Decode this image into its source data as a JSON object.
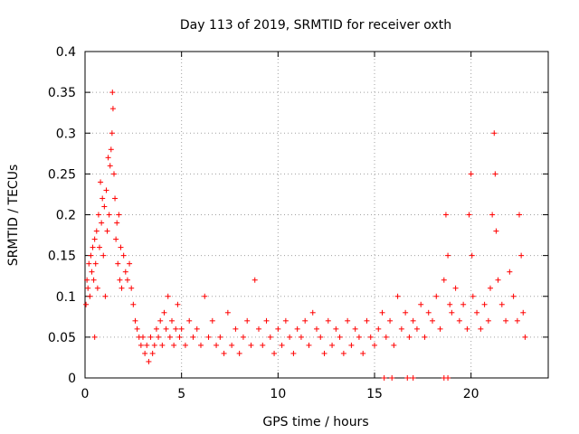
{
  "chart_data": {
    "type": "scatter",
    "title": "Day 113 of 2019, SRMTID for receiver oxth",
    "xlabel": "GPS time / hours",
    "ylabel": "SRMTID / TECUs",
    "xlim": [
      0,
      24
    ],
    "ylim": [
      0,
      0.4
    ],
    "xticks": [
      0,
      5,
      10,
      15,
      20
    ],
    "xtick_labels": [
      "0",
      "5",
      "10",
      "15",
      "20"
    ],
    "yticks": [
      0,
      0.05,
      0.1,
      0.15,
      0.2,
      0.25,
      0.3,
      0.35,
      0.4
    ],
    "ytick_labels": [
      "0",
      "0.05",
      "0.1",
      "0.15",
      "0.2",
      "0.25",
      "0.3",
      "0.35",
      "0.4"
    ],
    "grid": true,
    "marker": "+",
    "color": "#ff0000",
    "series": [
      {
        "name": "SRMTID",
        "points": [
          [
            0.05,
            0.09
          ],
          [
            0.1,
            0.12
          ],
          [
            0.15,
            0.11
          ],
          [
            0.2,
            0.14
          ],
          [
            0.25,
            0.1
          ],
          [
            0.3,
            0.15
          ],
          [
            0.35,
            0.13
          ],
          [
            0.4,
            0.16
          ],
          [
            0.45,
            0.12
          ],
          [
            0.5,
            0.05
          ],
          [
            0.5,
            0.17
          ],
          [
            0.55,
            0.14
          ],
          [
            0.6,
            0.18
          ],
          [
            0.65,
            0.11
          ],
          [
            0.7,
            0.2
          ],
          [
            0.75,
            0.16
          ],
          [
            0.8,
            0.24
          ],
          [
            0.85,
            0.19
          ],
          [
            0.9,
            0.22
          ],
          [
            0.95,
            0.15
          ],
          [
            1.0,
            0.21
          ],
          [
            1.05,
            0.1
          ],
          [
            1.1,
            0.23
          ],
          [
            1.15,
            0.18
          ],
          [
            1.2,
            0.27
          ],
          [
            1.25,
            0.2
          ],
          [
            1.3,
            0.26
          ],
          [
            1.35,
            0.28
          ],
          [
            1.4,
            0.3
          ],
          [
            1.42,
            0.35
          ],
          [
            1.45,
            0.33
          ],
          [
            1.5,
            0.25
          ],
          [
            1.55,
            0.22
          ],
          [
            1.6,
            0.17
          ],
          [
            1.65,
            0.19
          ],
          [
            1.7,
            0.14
          ],
          [
            1.75,
            0.2
          ],
          [
            1.8,
            0.12
          ],
          [
            1.85,
            0.16
          ],
          [
            1.9,
            0.11
          ],
          [
            2.0,
            0.15
          ],
          [
            2.1,
            0.13
          ],
          [
            2.2,
            0.12
          ],
          [
            2.3,
            0.14
          ],
          [
            2.4,
            0.11
          ],
          [
            2.5,
            0.09
          ],
          [
            2.6,
            0.07
          ],
          [
            2.7,
            0.06
          ],
          [
            2.8,
            0.05
          ],
          [
            2.9,
            0.04
          ],
          [
            3.0,
            0.05
          ],
          [
            3.1,
            0.03
          ],
          [
            3.2,
            0.04
          ],
          [
            3.3,
            0.02
          ],
          [
            3.4,
            0.05
          ],
          [
            3.5,
            0.03
          ],
          [
            3.6,
            0.04
          ],
          [
            3.7,
            0.06
          ],
          [
            3.8,
            0.05
          ],
          [
            3.9,
            0.07
          ],
          [
            4.0,
            0.04
          ],
          [
            4.1,
            0.08
          ],
          [
            4.2,
            0.06
          ],
          [
            4.3,
            0.1
          ],
          [
            4.4,
            0.05
          ],
          [
            4.5,
            0.07
          ],
          [
            4.6,
            0.04
          ],
          [
            4.7,
            0.06
          ],
          [
            4.8,
            0.09
          ],
          [
            4.9,
            0.05
          ],
          [
            5.0,
            0.06
          ],
          [
            5.2,
            0.04
          ],
          [
            5.4,
            0.07
          ],
          [
            5.6,
            0.05
          ],
          [
            5.8,
            0.06
          ],
          [
            6.0,
            0.04
          ],
          [
            6.2,
            0.1
          ],
          [
            6.4,
            0.05
          ],
          [
            6.6,
            0.07
          ],
          [
            6.8,
            0.04
          ],
          [
            7.0,
            0.05
          ],
          [
            7.2,
            0.03
          ],
          [
            7.4,
            0.08
          ],
          [
            7.6,
            0.04
          ],
          [
            7.8,
            0.06
          ],
          [
            8.0,
            0.03
          ],
          [
            8.2,
            0.05
          ],
          [
            8.4,
            0.07
          ],
          [
            8.6,
            0.04
          ],
          [
            8.8,
            0.12
          ],
          [
            9.0,
            0.06
          ],
          [
            9.2,
            0.04
          ],
          [
            9.4,
            0.07
          ],
          [
            9.6,
            0.05
          ],
          [
            9.8,
            0.03
          ],
          [
            10.0,
            0.06
          ],
          [
            10.2,
            0.04
          ],
          [
            10.4,
            0.07
          ],
          [
            10.6,
            0.05
          ],
          [
            10.8,
            0.03
          ],
          [
            11.0,
            0.06
          ],
          [
            11.2,
            0.05
          ],
          [
            11.4,
            0.07
          ],
          [
            11.6,
            0.04
          ],
          [
            11.8,
            0.08
          ],
          [
            12.0,
            0.06
          ],
          [
            12.2,
            0.05
          ],
          [
            12.4,
            0.03
          ],
          [
            12.6,
            0.07
          ],
          [
            12.8,
            0.04
          ],
          [
            13.0,
            0.06
          ],
          [
            13.2,
            0.05
          ],
          [
            13.4,
            0.03
          ],
          [
            13.6,
            0.07
          ],
          [
            13.8,
            0.04
          ],
          [
            14.0,
            0.06
          ],
          [
            14.2,
            0.05
          ],
          [
            14.4,
            0.03
          ],
          [
            14.6,
            0.07
          ],
          [
            14.8,
            0.05
          ],
          [
            15.0,
            0.04
          ],
          [
            15.2,
            0.06
          ],
          [
            15.4,
            0.08
          ],
          [
            15.6,
            0.05
          ],
          [
            15.8,
            0.07
          ],
          [
            16.0,
            0.04
          ],
          [
            16.2,
            0.1
          ],
          [
            16.4,
            0.06
          ],
          [
            16.6,
            0.08
          ],
          [
            16.8,
            0.05
          ],
          [
            17.0,
            0.07
          ],
          [
            17.2,
            0.06
          ],
          [
            17.4,
            0.09
          ],
          [
            17.6,
            0.05
          ],
          [
            17.8,
            0.08
          ],
          [
            18.0,
            0.07
          ],
          [
            18.2,
            0.1
          ],
          [
            18.4,
            0.06
          ],
          [
            18.6,
            0.12
          ],
          [
            18.7,
            0.2
          ],
          [
            18.8,
            0.15
          ],
          [
            18.9,
            0.09
          ],
          [
            19.0,
            0.08
          ],
          [
            19.2,
            0.11
          ],
          [
            19.4,
            0.07
          ],
          [
            19.6,
            0.09
          ],
          [
            19.8,
            0.06
          ],
          [
            19.9,
            0.2
          ],
          [
            20.0,
            0.25
          ],
          [
            20.05,
            0.15
          ],
          [
            20.1,
            0.1
          ],
          [
            20.3,
            0.08
          ],
          [
            20.5,
            0.06
          ],
          [
            20.7,
            0.09
          ],
          [
            20.9,
            0.07
          ],
          [
            21.0,
            0.11
          ],
          [
            21.1,
            0.2
          ],
          [
            21.2,
            0.3
          ],
          [
            21.25,
            0.25
          ],
          [
            21.3,
            0.18
          ],
          [
            21.4,
            0.12
          ],
          [
            21.6,
            0.09
          ],
          [
            21.8,
            0.07
          ],
          [
            22.0,
            0.13
          ],
          [
            22.2,
            0.1
          ],
          [
            22.4,
            0.07
          ],
          [
            22.5,
            0.2
          ],
          [
            22.6,
            0.15
          ],
          [
            22.7,
            0.08
          ],
          [
            22.8,
            0.05
          ],
          [
            15.5,
            0.0
          ],
          [
            15.9,
            0.0
          ],
          [
            16.7,
            0.0
          ],
          [
            17.0,
            0.0
          ],
          [
            18.6,
            0.0
          ],
          [
            18.8,
            0.0
          ]
        ]
      }
    ]
  }
}
